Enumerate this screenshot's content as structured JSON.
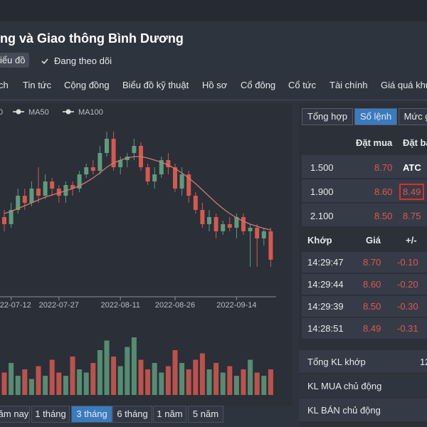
{
  "header": {
    "title": "ng và Giao thông Bình Dương",
    "chart_button": "iểu đồ",
    "follow": "Đang theo dõi"
  },
  "nav": [
    "ch",
    "Tin tức",
    "Cộng đồng",
    "Biểu đồ kỹ thuật",
    "Hồ sơ",
    "Cổ đông",
    "Cổ tức",
    "Tài chính",
    "Giá quá khứ"
  ],
  "chart": {
    "type": "candlestick",
    "legend": [
      "0",
      "MA50",
      "MA100"
    ],
    "x_labels": [
      "2022-07-12",
      "2022-07-27",
      "2022-08-11",
      "2022-08-26",
      "2022-09-14"
    ],
    "x_label_index": [
      1,
      8,
      17,
      25,
      34
    ],
    "ylim": [
      8.0,
      10.2
    ],
    "vlim": [
      0,
      1
    ],
    "up_color": "#5d9c7c",
    "down_color": "#d6584f",
    "ma_color": "#d07a72",
    "open": [
      8.9,
      8.8,
      9.0,
      9.2,
      9.1,
      9.3,
      9.2,
      9.4,
      9.3,
      9.2,
      9.35,
      9.3,
      9.5,
      9.6,
      9.55,
      9.8,
      10.0,
      9.6,
      9.7,
      9.8,
      9.9,
      9.6,
      9.4,
      9.5,
      9.7,
      9.6,
      9.3,
      9.5,
      9.2,
      9.0,
      8.8,
      8.9,
      8.7,
      8.8,
      8.75,
      8.9,
      8.7,
      8.75,
      8.6,
      8.7
    ],
    "high": [
      9.0,
      9.1,
      9.3,
      9.3,
      9.4,
      9.6,
      9.5,
      9.45,
      9.35,
      9.4,
      9.4,
      9.55,
      9.65,
      9.7,
      9.9,
      10.1,
      10.1,
      9.75,
      9.8,
      10.0,
      9.95,
      9.65,
      9.6,
      9.75,
      9.8,
      9.65,
      9.6,
      9.55,
      9.25,
      9.1,
      9.0,
      8.95,
      8.85,
      8.9,
      8.95,
      8.95,
      8.8,
      8.8,
      8.75,
      8.75
    ],
    "low": [
      8.7,
      8.75,
      8.95,
      9.0,
      9.05,
      9.1,
      9.15,
      9.2,
      9.1,
      9.1,
      9.2,
      9.25,
      9.45,
      9.5,
      9.5,
      9.75,
      9.55,
      9.5,
      9.6,
      9.7,
      9.55,
      9.35,
      9.3,
      9.45,
      9.5,
      9.25,
      9.2,
      9.1,
      8.95,
      8.75,
      8.7,
      8.6,
      8.65,
      8.7,
      8.6,
      8.65,
      8.2,
      8.2,
      8.5,
      8.2
    ],
    "close": [
      8.8,
      9.0,
      9.2,
      9.1,
      9.3,
      9.2,
      9.4,
      9.3,
      9.2,
      9.35,
      9.3,
      9.5,
      9.6,
      9.55,
      9.8,
      10.0,
      9.6,
      9.7,
      9.75,
      9.9,
      9.6,
      9.4,
      9.5,
      9.7,
      9.6,
      9.3,
      9.5,
      9.2,
      9.0,
      8.8,
      8.9,
      8.7,
      8.8,
      8.75,
      8.9,
      8.7,
      8.75,
      8.6,
      8.7,
      8.3
    ],
    "ma": [
      8.95,
      8.98,
      9.02,
      9.06,
      9.1,
      9.14,
      9.18,
      9.21,
      9.24,
      9.27,
      9.3,
      9.34,
      9.39,
      9.45,
      9.52,
      9.6,
      9.66,
      9.7,
      9.73,
      9.75,
      9.75,
      9.73,
      9.7,
      9.67,
      9.63,
      9.58,
      9.52,
      9.45,
      9.37,
      9.28,
      9.19,
      9.1,
      9.02,
      8.95,
      8.89,
      8.84,
      8.8,
      8.77,
      8.74,
      8.72
    ],
    "volume": [
      0.35,
      0.5,
      0.3,
      0.4,
      0.25,
      0.45,
      0.3,
      0.55,
      0.35,
      0.3,
      0.6,
      0.4,
      0.35,
      0.5,
      0.7,
      0.85,
      0.6,
      0.45,
      0.75,
      0.9,
      0.55,
      0.4,
      0.5,
      0.35,
      0.45,
      0.7,
      0.5,
      0.4,
      0.55,
      0.65,
      0.4,
      0.5,
      0.35,
      0.45,
      0.3,
      0.4,
      0.55,
      0.35,
      0.3,
      0.4
    ],
    "ranges": [
      "ăm nay",
      "1 tháng",
      "3 tháng",
      "6 tháng",
      "1 năm",
      "5 năm"
    ],
    "active_range": 2
  },
  "order_book": {
    "tabs": [
      "Tổng hợp",
      "Sổ lệnh",
      "Mức g"
    ],
    "active_tab": 1,
    "headers": [
      "Đặt mua",
      "Đặt bá"
    ],
    "rows": [
      [
        "1.500",
        "8.70",
        "ATC"
      ],
      [
        "1.900",
        "8.60",
        "8.49"
      ],
      [
        "2.100",
        "8.50",
        "8.75"
      ]
    ]
  },
  "trades": {
    "headers": [
      "Khớp",
      "Giá",
      "+/-"
    ],
    "rows": [
      [
        "14:29:47",
        "8.70",
        "-0.10"
      ],
      [
        "14:29:44",
        "8.60",
        "-0.20"
      ],
      [
        "14:29:39",
        "8.50",
        "-0.30"
      ],
      [
        "14:28:51",
        "8.49",
        "-0.31"
      ]
    ]
  },
  "summary": [
    "Tổng KL khớp",
    "KL MUA chủ động",
    "KL BÁN chủ động"
  ],
  "summary_value": "12"
}
